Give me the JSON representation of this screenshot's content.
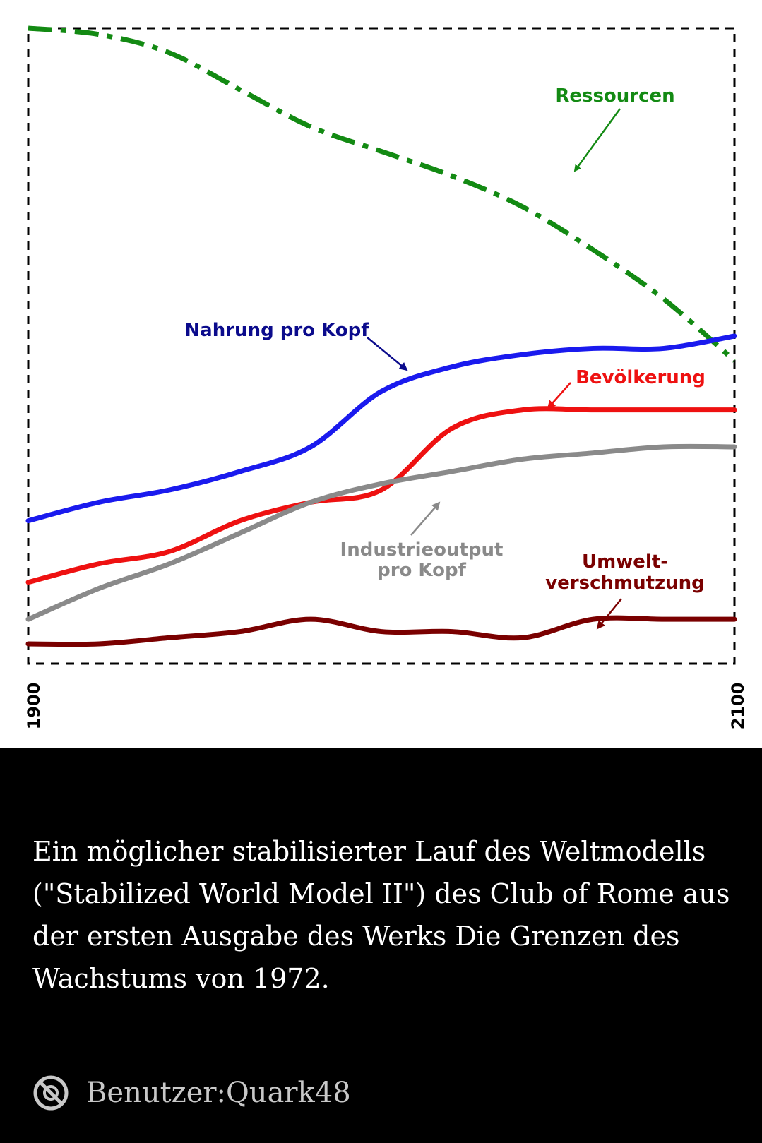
{
  "figure": {
    "line_colors": {
      "ressourcen": "#138a13",
      "nahrung": "#1a1aee",
      "bevoelkerung": "#ee1111",
      "industrie": "#8a8a8a",
      "umwelt": "#7a0000"
    }
  },
  "chart_data": {
    "type": "line",
    "x": [
      1900,
      1920,
      1940,
      1960,
      1980,
      2000,
      2020,
      2040,
      2060,
      2080,
      2100
    ],
    "xlim": [
      1900,
      2100
    ],
    "x_tick_labels": [
      "1900",
      "2100"
    ],
    "grid": false,
    "series": [
      {
        "name": "Ressourcen",
        "color": "#138a13",
        "style": "dash-dot",
        "values": [
          1.0,
          0.99,
          0.96,
          0.9,
          0.84,
          0.8,
          0.76,
          0.71,
          0.64,
          0.56,
          0.46
        ]
      },
      {
        "name": "Nahrung pro Kopf",
        "color": "#1a1aee",
        "style": "solid",
        "values": [
          0.2,
          0.23,
          0.25,
          0.28,
          0.32,
          0.41,
          0.45,
          0.47,
          0.48,
          0.48,
          0.5
        ]
      },
      {
        "name": "Bevölkerung",
        "color": "#ee1111",
        "style": "solid",
        "values": [
          0.1,
          0.13,
          0.15,
          0.2,
          0.23,
          0.25,
          0.35,
          0.38,
          0.38,
          0.38,
          0.38
        ]
      },
      {
        "name": "Industrieoutput pro Kopf",
        "color": "#8a8a8a",
        "style": "solid",
        "values": [
          0.04,
          0.09,
          0.13,
          0.18,
          0.23,
          0.26,
          0.28,
          0.3,
          0.31,
          0.32,
          0.32
        ]
      },
      {
        "name": "Umweltverschmutzung",
        "color": "#7a0000",
        "style": "solid",
        "values": [
          0.0,
          0.0,
          0.01,
          0.02,
          0.04,
          0.02,
          0.02,
          0.01,
          0.04,
          0.04,
          0.04
        ]
      }
    ]
  },
  "labels": {
    "ressourcen": "Ressourcen",
    "nahrung": "Nahrung pro Kopf",
    "bevoelkerung": "Bevölkerung",
    "industrie_line1": "Industrieoutput",
    "industrie_line2": "pro Kopf",
    "umwelt_line1": "Umwelt-",
    "umwelt_line2": "verschmutzung",
    "year_start": "1900",
    "year_end": "2100"
  },
  "caption": {
    "text": "Ein möglicher stabilisierter Lauf des Weltmodells (\"Stabilized World Model II\") des Club of Rome aus der ersten Ausgabe des Werks Die Grenzen des Wachstums von 1972."
  },
  "license": {
    "icon": "public-domain-icon",
    "author": "Benutzer:Quark48"
  }
}
